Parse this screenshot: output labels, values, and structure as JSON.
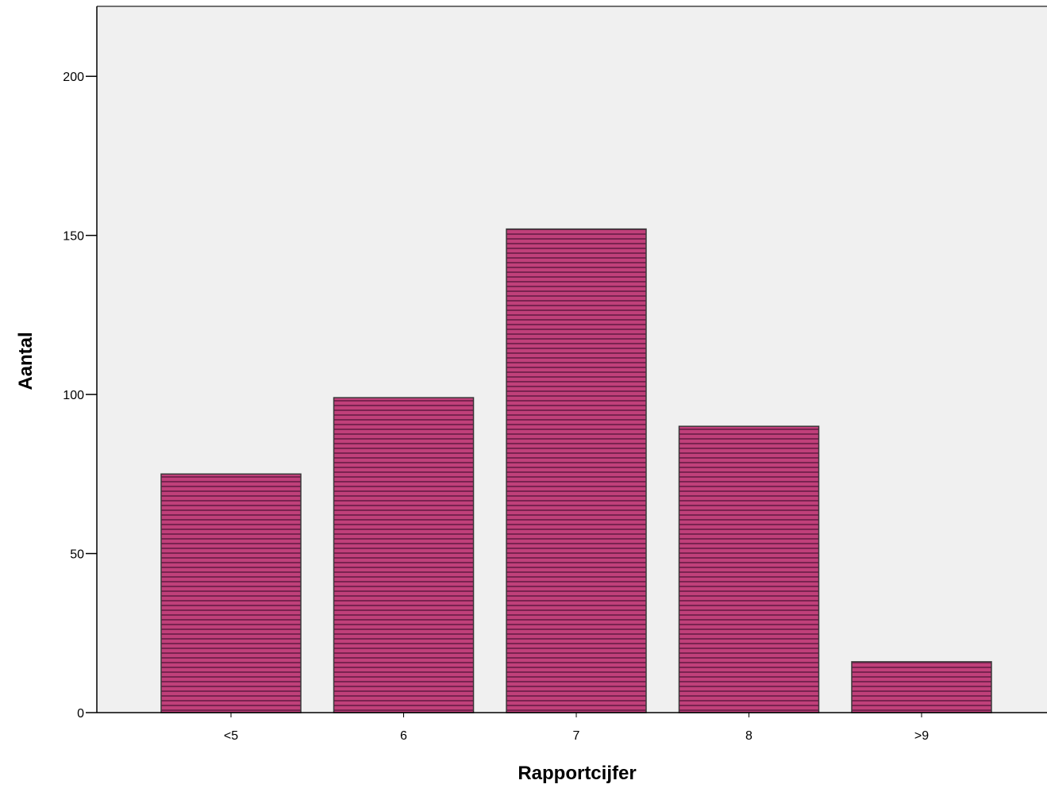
{
  "colors": {
    "plot_background": "#f0f0f0",
    "bar_fill": "#c0407a",
    "bar_stripe": "#7a2350",
    "bar_stroke": "#3a3a3a",
    "axis": "#000000"
  },
  "chart_data": {
    "type": "bar",
    "title": "",
    "xlabel": "Rapportcijfer",
    "ylabel": "Aantal",
    "categories": [
      "<5",
      "6",
      "7",
      "8",
      ">9"
    ],
    "values": [
      75,
      99,
      152,
      90,
      16
    ],
    "ylim": [
      0,
      222
    ],
    "yticks": [
      0,
      50,
      100,
      150,
      200
    ],
    "grid": false,
    "legend": "none",
    "bar_pattern": "horizontal-stripes"
  }
}
